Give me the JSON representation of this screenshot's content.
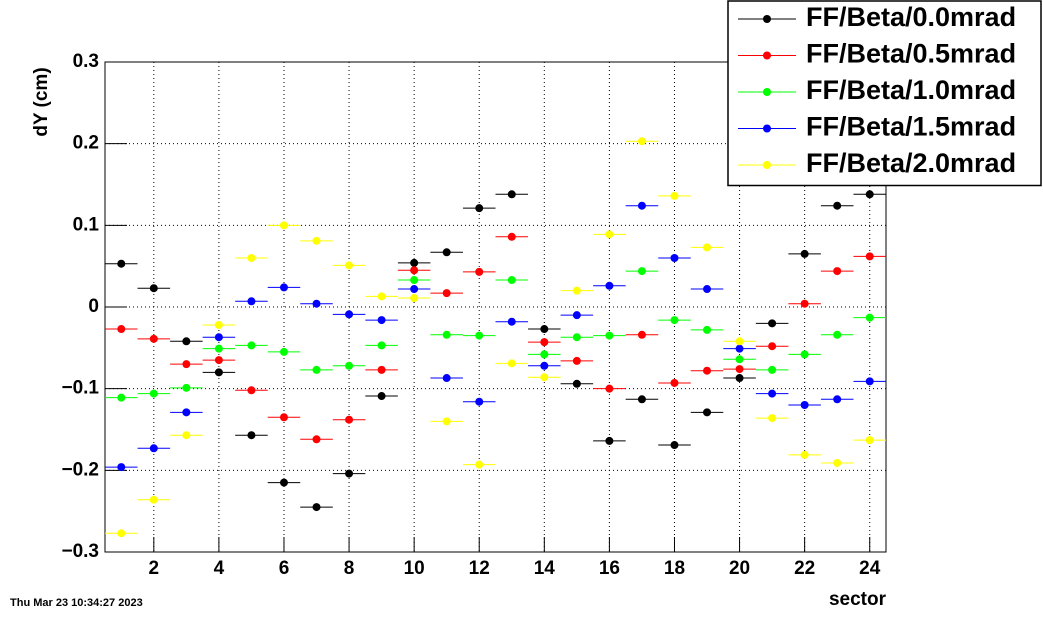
{
  "chart_data": {
    "type": "scatter",
    "x_label": "sector",
    "y_label": "dY (cm)",
    "timestamp": "Thu Mar 23 10:34:27 2023",
    "x": [
      1,
      2,
      3,
      4,
      5,
      6,
      7,
      8,
      9,
      10,
      11,
      12,
      13,
      14,
      15,
      16,
      17,
      18,
      19,
      20,
      21,
      22,
      23,
      24
    ],
    "xlim": [
      0.5,
      24.5
    ],
    "xticks": [
      2,
      4,
      6,
      8,
      10,
      12,
      14,
      16,
      18,
      20,
      22,
      24
    ],
    "ylim": [
      -0.3,
      0.3
    ],
    "yticks": [
      {
        "value": -0.3,
        "label": "−0.3"
      },
      {
        "value": -0.2,
        "label": "−0.2"
      },
      {
        "value": -0.1,
        "label": "−0.1"
      },
      0,
      0.1,
      0.2,
      0.3
    ],
    "grid": true,
    "legend": "top-right",
    "series": [
      {
        "name": "FF/Beta/0.0mrad",
        "color": "#000000",
        "values": [
          0.053,
          0.023,
          -0.042,
          -0.08,
          -0.157,
          -0.215,
          -0.245,
          -0.204,
          -0.109,
          0.054,
          0.067,
          0.121,
          0.138,
          -0.027,
          -0.094,
          -0.164,
          -0.113,
          -0.169,
          -0.129,
          -0.087,
          -0.02,
          0.065,
          0.124,
          0.138
        ]
      },
      {
        "name": "FF/Beta/0.5mrad",
        "color": "#ff0000",
        "values": [
          -0.027,
          -0.039,
          -0.07,
          -0.065,
          -0.102,
          -0.135,
          -0.162,
          -0.138,
          -0.077,
          0.045,
          0.017,
          0.043,
          0.086,
          -0.043,
          -0.066,
          -0.1,
          -0.034,
          -0.093,
          -0.078,
          -0.076,
          -0.048,
          0.004,
          0.044,
          0.062
        ]
      },
      {
        "name": "FF/Beta/1.0mrad",
        "color": "#00ff00",
        "values": [
          -0.111,
          -0.106,
          -0.099,
          -0.051,
          -0.047,
          -0.055,
          -0.077,
          -0.072,
          -0.047,
          0.033,
          -0.034,
          -0.035,
          0.033,
          -0.058,
          -0.037,
          -0.035,
          0.044,
          -0.016,
          -0.028,
          -0.064,
          -0.077,
          -0.058,
          -0.034,
          -0.013
        ]
      },
      {
        "name": "FF/Beta/1.5mrad",
        "color": "#0000ff",
        "values": [
          -0.196,
          -0.173,
          -0.129,
          -0.037,
          0.007,
          0.024,
          0.004,
          -0.009,
          -0.016,
          0.022,
          -0.087,
          -0.116,
          -0.018,
          -0.072,
          -0.01,
          0.026,
          0.124,
          0.06,
          0.022,
          -0.051,
          -0.106,
          -0.12,
          -0.113,
          -0.091
        ]
      },
      {
        "name": "FF/Beta/2.0mrad",
        "color": "#ffff00",
        "values": [
          -0.277,
          -0.236,
          -0.157,
          -0.022,
          0.06,
          0.1,
          0.081,
          0.051,
          0.013,
          0.011,
          -0.14,
          -0.193,
          -0.069,
          -0.086,
          0.02,
          0.089,
          0.203,
          0.136,
          0.073,
          -0.042,
          -0.136,
          -0.181,
          -0.191,
          -0.163
        ]
      }
    ]
  }
}
